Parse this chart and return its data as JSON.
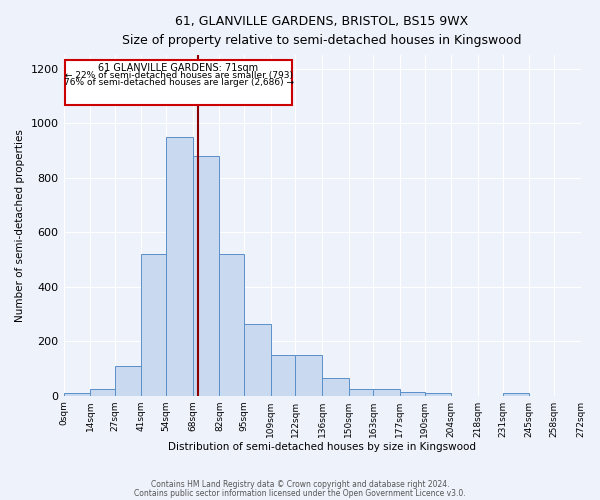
{
  "title1": "61, GLANVILLE GARDENS, BRISTOL, BS15 9WX",
  "title2": "Size of property relative to semi-detached houses in Kingswood",
  "xlabel": "Distribution of semi-detached houses by size in Kingswood",
  "ylabel": "Number of semi-detached properties",
  "footer1": "Contains HM Land Registry data © Crown copyright and database right 2024.",
  "footer2": "Contains public sector information licensed under the Open Government Licence v3.0.",
  "annotation_title": "61 GLANVILLE GARDENS: 71sqm",
  "annotation_line1": "← 22% of semi-detached houses are smaller (793)",
  "annotation_line2": "76% of semi-detached houses are larger (2,686) →",
  "property_size": 71,
  "bin_edges": [
    0,
    14,
    27,
    41,
    54,
    68,
    82,
    95,
    109,
    122,
    136,
    150,
    163,
    177,
    190,
    204,
    218,
    231,
    245,
    258,
    272
  ],
  "bin_counts": [
    10,
    25,
    110,
    520,
    950,
    880,
    520,
    265,
    150,
    150,
    65,
    25,
    25,
    12,
    10,
    0,
    0,
    10,
    0,
    0
  ],
  "bar_color": "#c8d9f0",
  "bar_edge_color": "#5b8fc9",
  "vline_color": "#8b0000",
  "vline_x": 71,
  "bg_color": "#eef2fb",
  "annotation_box_color": "#ffffff",
  "annotation_box_edge": "#cc0000",
  "ylim": [
    0,
    1250
  ],
  "yticks": [
    0,
    200,
    400,
    600,
    800,
    1000,
    1200
  ],
  "tick_labels": [
    "0sqm",
    "14sqm",
    "27sqm",
    "41sqm",
    "54sqm",
    "68sqm",
    "82sqm",
    "95sqm",
    "109sqm",
    "122sqm",
    "136sqm",
    "150sqm",
    "163sqm",
    "177sqm",
    "190sqm",
    "204sqm",
    "218sqm",
    "231sqm",
    "245sqm",
    "258sqm",
    "272sqm"
  ]
}
